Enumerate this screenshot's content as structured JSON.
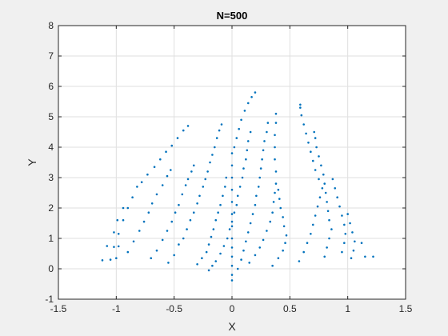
{
  "chart_data": {
    "type": "scatter",
    "title": "N=500",
    "xlabel": "X",
    "ylabel": "Y",
    "xlim": [
      -1.5,
      1.5
    ],
    "ylim": [
      -1,
      8
    ],
    "xticks": [
      -1.5,
      -1,
      -0.5,
      0,
      0.5,
      1,
      1.5
    ],
    "xtick_labels": [
      "-1.5",
      "-1",
      "-0.5",
      "0",
      "0.5",
      "1",
      "1.5"
    ],
    "yticks": [
      -1,
      0,
      1,
      2,
      3,
      4,
      5,
      6,
      7,
      8
    ],
    "ytick_labels": [
      "-1",
      "0",
      "1",
      "2",
      "3",
      "4",
      "5",
      "6",
      "7",
      "8"
    ],
    "grid": true,
    "point_color": "#0072BD",
    "series": [
      {
        "points": [
          [
            -1.12,
            0.28
          ],
          [
            -1.05,
            0.3
          ],
          [
            -1.0,
            0.35
          ],
          [
            -1.08,
            0.75
          ],
          [
            -1.02,
            0.72
          ],
          [
            -0.98,
            0.74
          ],
          [
            -1.02,
            1.2
          ],
          [
            -0.98,
            1.15
          ],
          [
            -0.99,
            1.6
          ],
          [
            -0.94,
            1.6
          ],
          [
            -0.94,
            2.0
          ],
          [
            -0.9,
            2.0
          ],
          [
            -0.86,
            2.35
          ],
          [
            -0.82,
            2.7
          ],
          [
            -0.78,
            2.85
          ],
          [
            -0.73,
            3.1
          ],
          [
            -0.67,
            3.35
          ],
          [
            -0.62,
            3.6
          ],
          [
            -0.57,
            3.85
          ],
          [
            -0.52,
            4.05
          ],
          [
            -0.47,
            4.3
          ],
          [
            -0.42,
            4.55
          ],
          [
            -0.38,
            4.7
          ],
          [
            -0.9,
            0.55
          ],
          [
            -0.85,
            0.9
          ],
          [
            -0.8,
            1.25
          ],
          [
            -0.76,
            1.55
          ],
          [
            -0.72,
            1.85
          ],
          [
            -0.69,
            2.15
          ],
          [
            -0.65,
            2.45
          ],
          [
            -0.6,
            2.75
          ],
          [
            -0.56,
            3.05
          ],
          [
            -0.53,
            3.25
          ],
          [
            -0.7,
            0.35
          ],
          [
            -0.65,
            0.6
          ],
          [
            -0.6,
            0.95
          ],
          [
            -0.56,
            1.25
          ],
          [
            -0.52,
            1.55
          ],
          [
            -0.49,
            1.85
          ],
          [
            -0.46,
            2.1
          ],
          [
            -0.43,
            2.45
          ],
          [
            -0.4,
            2.75
          ],
          [
            -0.38,
            2.95
          ],
          [
            -0.35,
            3.2
          ],
          [
            -0.33,
            3.4
          ],
          [
            -0.55,
            0.2
          ],
          [
            -0.5,
            0.45
          ],
          [
            -0.46,
            0.8
          ],
          [
            -0.42,
            1.0
          ],
          [
            -0.39,
            1.3
          ],
          [
            -0.36,
            1.6
          ],
          [
            -0.33,
            1.85
          ],
          [
            -0.3,
            2.15
          ],
          [
            -0.28,
            2.4
          ],
          [
            -0.25,
            2.7
          ],
          [
            -0.23,
            2.95
          ],
          [
            -0.21,
            3.2
          ],
          [
            -0.19,
            3.5
          ],
          [
            -0.17,
            3.75
          ],
          [
            -0.15,
            4.0
          ],
          [
            -0.13,
            4.3
          ],
          [
            -0.11,
            4.55
          ],
          [
            -0.09,
            4.75
          ],
          [
            -0.3,
            0.15
          ],
          [
            -0.26,
            0.35
          ],
          [
            -0.22,
            0.55
          ],
          [
            -0.2,
            0.8
          ],
          [
            -0.18,
            1.05
          ],
          [
            -0.16,
            1.3
          ],
          [
            -0.14,
            1.6
          ],
          [
            -0.12,
            1.85
          ],
          [
            -0.1,
            2.1
          ],
          [
            -0.08,
            2.4
          ],
          [
            -0.06,
            2.7
          ],
          [
            -0.05,
            3.0
          ],
          [
            -0.2,
            -0.05
          ],
          [
            -0.17,
            0.1
          ],
          [
            -0.14,
            0.25
          ],
          [
            -0.1,
            0.5
          ],
          [
            -0.07,
            0.75
          ],
          [
            -0.04,
            1.0
          ],
          [
            -0.02,
            1.3
          ],
          [
            0.0,
            1.55
          ],
          [
            0.02,
            1.85
          ],
          [
            0.04,
            2.1
          ],
          [
            0.05,
            2.4
          ],
          [
            0.07,
            2.7
          ],
          [
            0.09,
            3.0
          ],
          [
            0.1,
            3.3
          ],
          [
            0.12,
            3.6
          ],
          [
            0.13,
            3.9
          ],
          [
            0.14,
            4.2
          ],
          [
            0.16,
            4.5
          ],
          [
            0.0,
            -0.38
          ],
          [
            0.0,
            -0.2
          ],
          [
            0.0,
            0.1
          ],
          [
            0.0,
            0.4
          ],
          [
            0.0,
            0.7
          ],
          [
            0.0,
            1.0
          ],
          [
            0.0,
            1.4
          ],
          [
            0.0,
            1.8
          ],
          [
            0.0,
            2.2
          ],
          [
            0.0,
            2.6
          ],
          [
            0.0,
            3.0
          ],
          [
            0.0,
            3.4
          ],
          [
            0.0,
            3.8
          ],
          [
            0.02,
            4.0
          ],
          [
            0.04,
            4.3
          ],
          [
            0.06,
            4.6
          ],
          [
            0.08,
            4.9
          ],
          [
            0.11,
            5.2
          ],
          [
            0.14,
            5.45
          ],
          [
            0.17,
            5.65
          ],
          [
            0.2,
            5.8
          ],
          [
            0.05,
            0.0
          ],
          [
            0.08,
            0.3
          ],
          [
            0.1,
            0.6
          ],
          [
            0.12,
            0.9
          ],
          [
            0.14,
            1.2
          ],
          [
            0.16,
            1.5
          ],
          [
            0.18,
            1.8
          ],
          [
            0.2,
            2.1
          ],
          [
            0.21,
            2.4
          ],
          [
            0.23,
            2.7
          ],
          [
            0.24,
            3.0
          ],
          [
            0.25,
            3.3
          ],
          [
            0.26,
            3.6
          ],
          [
            0.27,
            3.9
          ],
          [
            0.28,
            4.2
          ],
          [
            0.3,
            4.5
          ],
          [
            0.31,
            4.8
          ],
          [
            0.15,
            0.2
          ],
          [
            0.2,
            0.45
          ],
          [
            0.24,
            0.7
          ],
          [
            0.27,
            0.95
          ],
          [
            0.3,
            1.25
          ],
          [
            0.33,
            1.55
          ],
          [
            0.35,
            1.85
          ],
          [
            0.36,
            2.2
          ],
          [
            0.37,
            2.5
          ],
          [
            0.38,
            2.8
          ],
          [
            0.38,
            3.2
          ],
          [
            0.37,
            3.6
          ],
          [
            0.37,
            4.0
          ],
          [
            0.37,
            4.4
          ],
          [
            0.38,
            4.8
          ],
          [
            0.38,
            5.1
          ],
          [
            0.35,
            0.1
          ],
          [
            0.4,
            0.35
          ],
          [
            0.44,
            0.6
          ],
          [
            0.46,
            0.85
          ],
          [
            0.47,
            1.1
          ],
          [
            0.45,
            1.4
          ],
          [
            0.44,
            1.7
          ],
          [
            0.42,
            2.0
          ],
          [
            0.41,
            2.3
          ],
          [
            0.4,
            2.6
          ],
          [
            0.58,
            0.25
          ],
          [
            0.62,
            0.55
          ],
          [
            0.65,
            0.85
          ],
          [
            0.68,
            1.15
          ],
          [
            0.7,
            1.45
          ],
          [
            0.72,
            1.75
          ],
          [
            0.74,
            2.05
          ],
          [
            0.76,
            2.35
          ],
          [
            0.78,
            2.65
          ],
          [
            0.75,
            2.95
          ],
          [
            0.72,
            3.25
          ],
          [
            0.7,
            3.55
          ],
          [
            0.68,
            3.85
          ],
          [
            0.66,
            4.15
          ],
          [
            0.64,
            4.45
          ],
          [
            0.62,
            4.75
          ],
          [
            0.6,
            5.05
          ],
          [
            0.59,
            5.3
          ],
          [
            0.59,
            5.4
          ],
          [
            0.8,
            0.4
          ],
          [
            0.82,
            0.7
          ],
          [
            0.84,
            1.0
          ],
          [
            0.86,
            1.3
          ],
          [
            0.84,
            1.6
          ],
          [
            0.83,
            1.9
          ],
          [
            0.82,
            2.2
          ],
          [
            0.81,
            2.5
          ],
          [
            0.8,
            2.8
          ],
          [
            0.79,
            3.1
          ],
          [
            0.77,
            3.4
          ],
          [
            0.75,
            3.7
          ],
          [
            0.73,
            4.0
          ],
          [
            0.72,
            4.3
          ],
          [
            0.71,
            4.5
          ],
          [
            0.95,
            0.55
          ],
          [
            0.97,
            0.85
          ],
          [
            0.98,
            1.15
          ],
          [
            0.97,
            1.45
          ],
          [
            0.95,
            1.75
          ],
          [
            0.93,
            2.05
          ],
          [
            0.91,
            2.35
          ],
          [
            0.89,
            2.65
          ],
          [
            0.87,
            2.95
          ],
          [
            1.03,
            0.35
          ],
          [
            1.05,
            0.6
          ],
          [
            1.06,
            0.9
          ],
          [
            1.04,
            1.2
          ],
          [
            1.02,
            1.5
          ],
          [
            1.0,
            1.8
          ],
          [
            1.12,
            0.85
          ],
          [
            1.15,
            0.4
          ],
          [
            1.22,
            0.4
          ]
        ]
      }
    ]
  }
}
